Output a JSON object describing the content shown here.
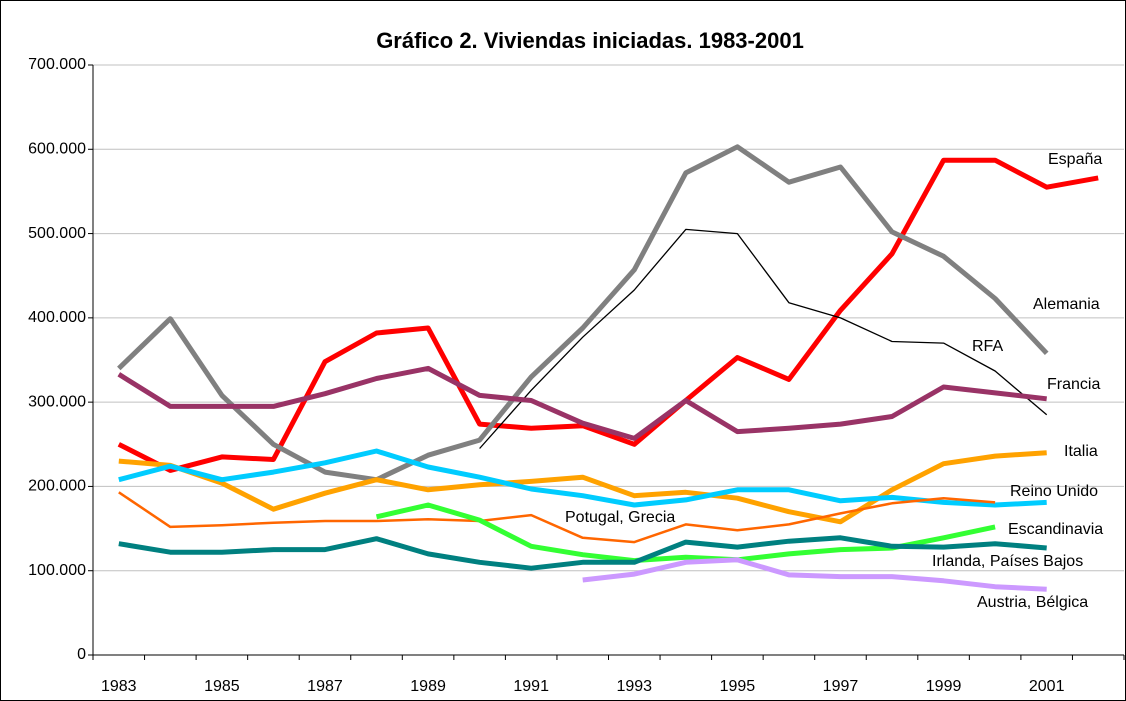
{
  "chart_data": {
    "type": "line",
    "title": "Gráfico 2. Viviendas iniciadas. 1983-2001",
    "categories": [
      "1983",
      null,
      "1985",
      null,
      "1987",
      null,
      "1989",
      null,
      "1991",
      null,
      "1993",
      null,
      "1995",
      null,
      "1997",
      null,
      "1999",
      null,
      "2001",
      null
    ],
    "ylim": [
      0,
      700000
    ],
    "yticks": [
      0,
      {
        "value": 100000,
        "label": "100.000"
      },
      {
        "value": 200000,
        "label": "200.000"
      },
      {
        "value": 300000,
        "label": "300.000"
      },
      {
        "value": 400000,
        "label": "400.000"
      },
      {
        "value": 500000,
        "label": "500.000"
      },
      {
        "value": 600000,
        "label": "600.000"
      },
      {
        "value": 700000,
        "label": "700.000"
      }
    ],
    "grid": true,
    "series": [
      {
        "name": "España",
        "color": "#ff0000",
        "values": [
          250000,
          219000,
          235000,
          232000,
          348000,
          382000,
          388000,
          274000,
          269000,
          272000,
          250000,
          302000,
          353000,
          327000,
          409000,
          476000,
          587000,
          587000,
          555000,
          566000
        ]
      },
      {
        "name": "Alemania",
        "color": "#808080",
        "values": [
          340000,
          399000,
          308000,
          250000,
          217000,
          208000,
          237000,
          255000,
          330000,
          388000,
          457000,
          572000,
          603000,
          561000,
          579000,
          502000,
          473000,
          423000,
          358000,
          null
        ]
      },
      {
        "name": "RFA",
        "color": "#000000",
        "values": [
          null,
          null,
          null,
          null,
          null,
          null,
          null,
          245000,
          314000,
          377000,
          433000,
          505000,
          500000,
          418000,
          400000,
          372000,
          370000,
          337000,
          285000,
          null
        ]
      },
      {
        "name": "Francia",
        "color": "#993366",
        "values": [
          333000,
          295000,
          295000,
          295000,
          310000,
          328000,
          340000,
          308000,
          302000,
          275000,
          257000,
          302000,
          265000,
          269000,
          274000,
          283000,
          318000,
          311000,
          304000,
          null
        ]
      },
      {
        "name": "Italia",
        "color": "#ffa200",
        "values": [
          230000,
          225000,
          204000,
          173000,
          192000,
          208000,
          196000,
          202000,
          206000,
          211000,
          189000,
          193000,
          186000,
          170000,
          158000,
          196000,
          227000,
          236000,
          240000,
          null
        ]
      },
      {
        "name": "Reino Unido",
        "color": "#00ccff",
        "values": [
          208000,
          224000,
          208000,
          217000,
          228000,
          242000,
          223000,
          211000,
          197000,
          189000,
          178000,
          184000,
          196000,
          196000,
          183000,
          187000,
          181000,
          178000,
          181000,
          null
        ]
      },
      {
        "name": "Potugal, Grecia",
        "color": "#ff6600",
        "values": [
          193000,
          152000,
          154000,
          157000,
          159000,
          159000,
          161000,
          159000,
          166000,
          139000,
          134000,
          155000,
          148000,
          155000,
          168000,
          180000,
          186000,
          181000,
          null,
          null
        ]
      },
      {
        "name": "Escandinavia",
        "color": "#33ff33",
        "values": [
          null,
          null,
          null,
          null,
          null,
          164000,
          178000,
          160000,
          129000,
          119000,
          112000,
          116000,
          113000,
          120000,
          125000,
          127000,
          139000,
          152000,
          null,
          null
        ]
      },
      {
        "name": "Irlanda, Países Bajos",
        "color": "#008080",
        "values": [
          132000,
          122000,
          122000,
          125000,
          125000,
          138000,
          120000,
          110000,
          103000,
          110000,
          110000,
          134000,
          128000,
          135000,
          139000,
          129000,
          128000,
          132000,
          127000,
          null
        ]
      },
      {
        "name": "Austria, Bélgica",
        "color": "#cc99ff",
        "values": [
          null,
          null,
          null,
          null,
          null,
          null,
          null,
          null,
          null,
          89000,
          96000,
          110000,
          113000,
          95000,
          93000,
          93000,
          88000,
          81000,
          78000,
          null
        ]
      }
    ]
  }
}
